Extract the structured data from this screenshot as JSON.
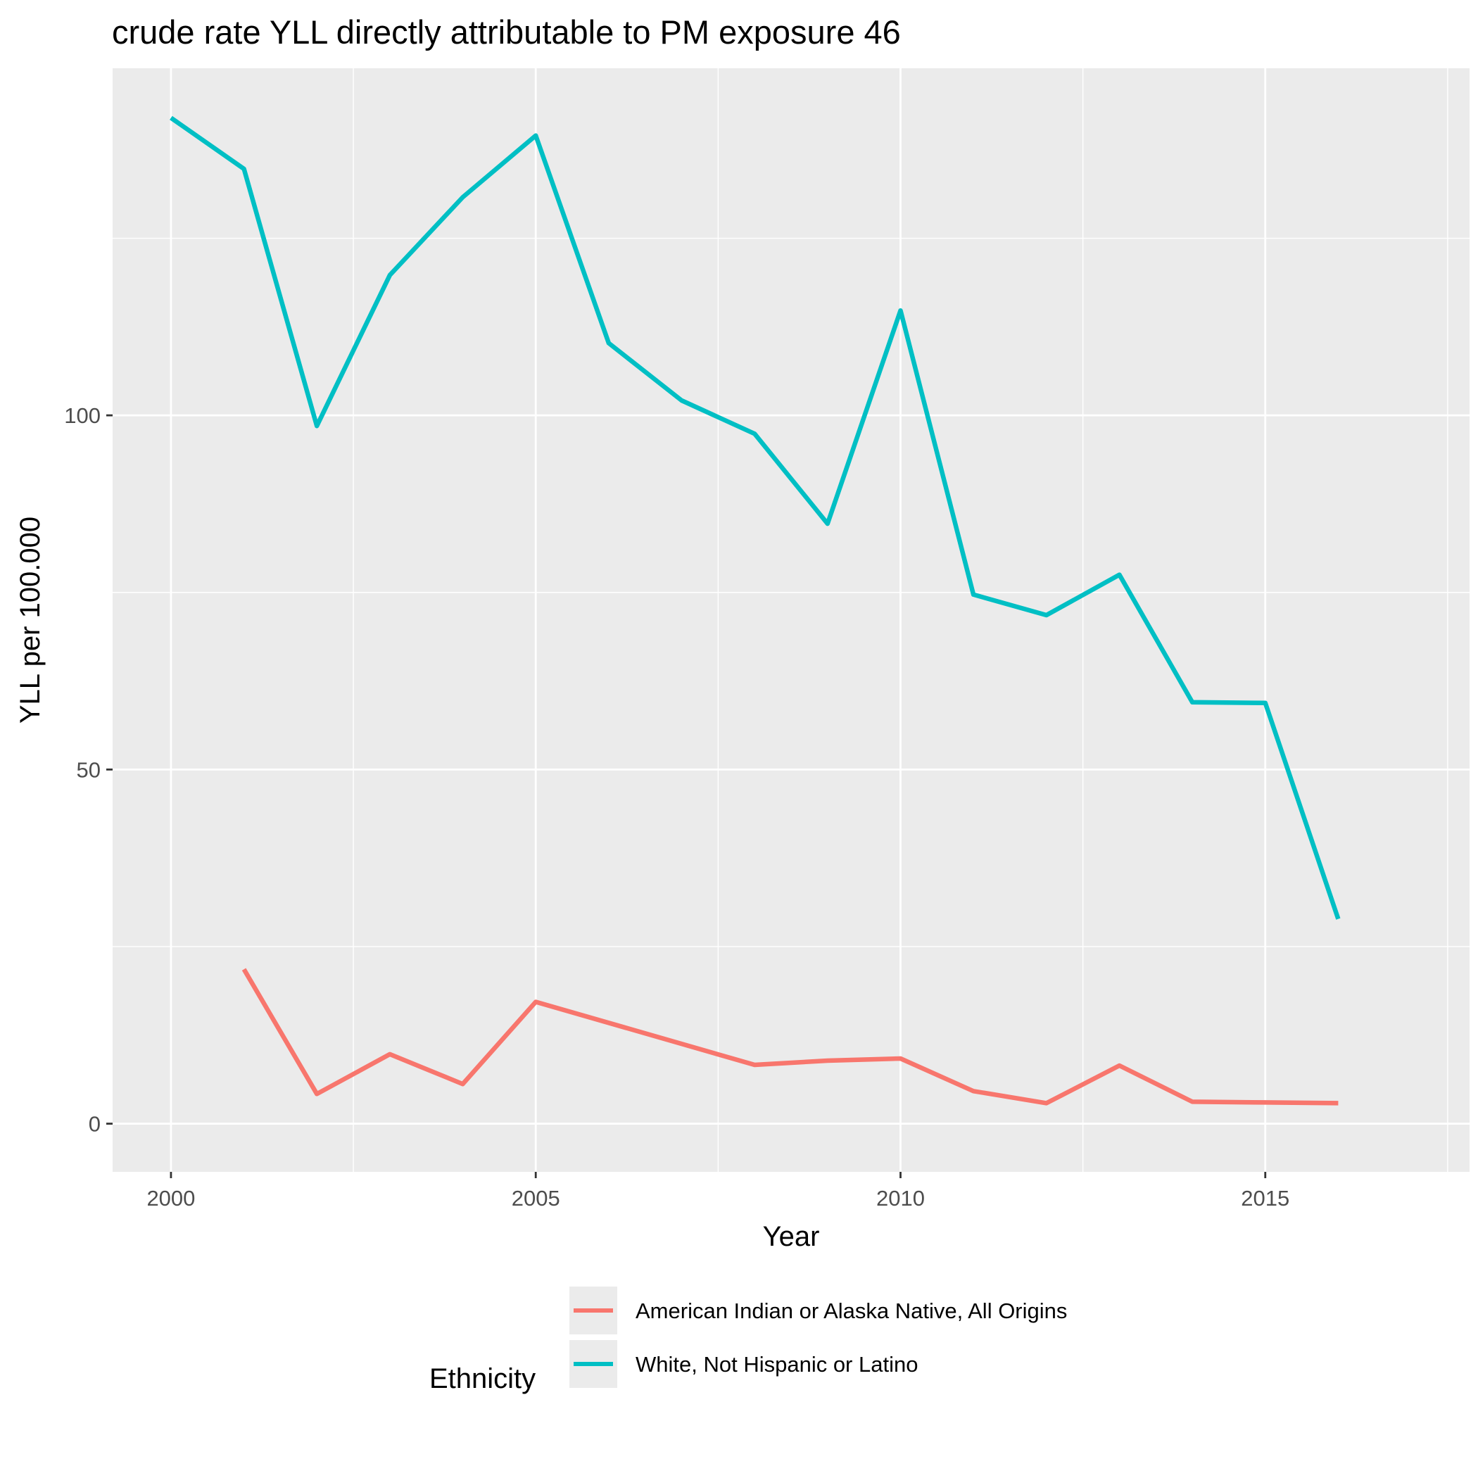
{
  "chart_data": {
    "type": "line",
    "title": "crude rate YLL directly attributable to PM exposure 46",
    "xlabel": "Year",
    "ylabel": "YLL per 100.000",
    "xlim": [
      1999.2,
      2017.8
    ],
    "ylim": [
      -6.8,
      149.0
    ],
    "x_ticks": [
      2000,
      2005,
      2010,
      2015
    ],
    "x_tick_labels": [
      "2000",
      "2005",
      "2010",
      "2015"
    ],
    "y_ticks": [
      0,
      50,
      100
    ],
    "y_tick_labels": [
      "0",
      "50",
      "100"
    ],
    "grid": true,
    "legend": {
      "title": "Ethnicity",
      "placement": "bottom"
    },
    "series": [
      {
        "name": "American Indian or Alaska Native, All Origins",
        "color": "#F8766D",
        "x": [
          2001,
          2002,
          2003,
          2004,
          2005,
          2008,
          2009,
          2010,
          2011,
          2012,
          2013,
          2014,
          2015,
          2016
        ],
        "values": [
          21.8,
          4.2,
          9.8,
          5.6,
          17.2,
          8.3,
          8.9,
          9.2,
          4.6,
          2.9,
          8.2,
          3.1,
          3.0,
          2.9
        ]
      },
      {
        "name": "White, Not Hispanic or Latino",
        "color": "#00BFC4",
        "x": [
          2000,
          2001,
          2002,
          2003,
          2004,
          2005,
          2006,
          2007,
          2008,
          2009,
          2010,
          2011,
          2012,
          2013,
          2014,
          2015,
          2016
        ],
        "values": [
          142.0,
          134.8,
          98.5,
          119.8,
          130.8,
          139.5,
          110.2,
          102.1,
          97.4,
          84.7,
          114.8,
          74.7,
          71.8,
          77.5,
          59.5,
          59.4,
          28.9
        ]
      }
    ]
  }
}
